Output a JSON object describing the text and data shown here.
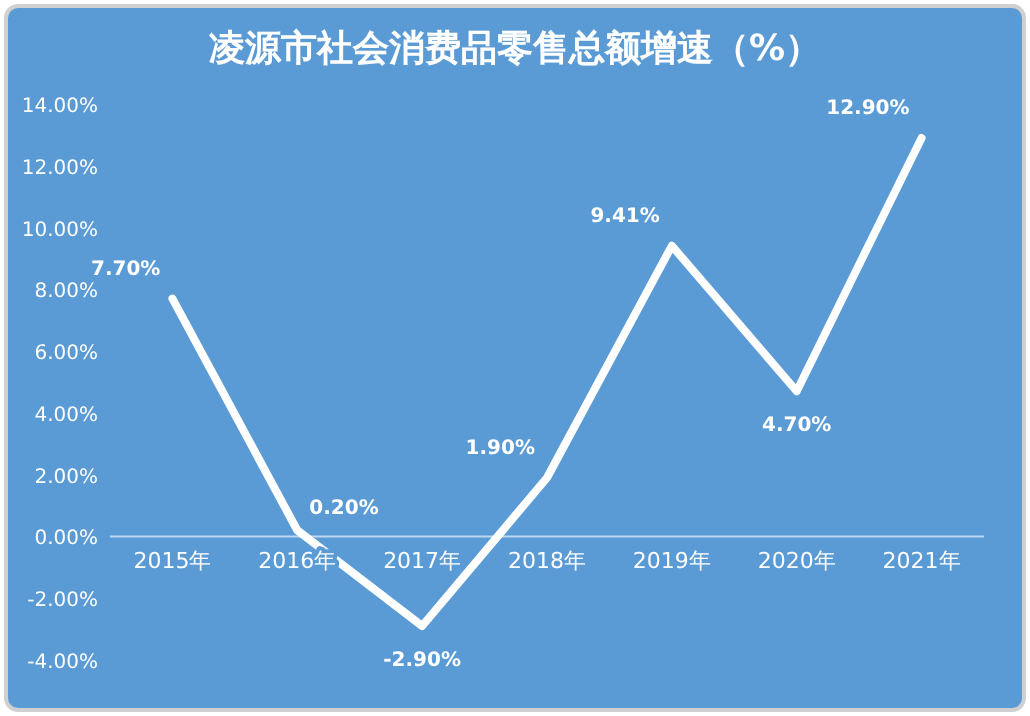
{
  "chart_data": {
    "type": "line",
    "title": "凌源市社会消费品零售总额增速（%）",
    "categories": [
      "2015年",
      "2016年",
      "2017年",
      "2018年",
      "2019年",
      "2020年",
      "2021年"
    ],
    "series": [
      {
        "color": "#ffffff",
        "values": [
          7.7,
          0.2,
          -2.9,
          1.9,
          9.41,
          4.7,
          12.9
        ],
        "value_labels": [
          "7.70%",
          "0.20%",
          "-2.90%",
          "1.90%",
          "9.41%",
          "4.70%",
          "12.90%"
        ]
      }
    ],
    "ylim": [
      -4,
      14
    ],
    "yticks": [
      {
        "value": -4,
        "label": "-4.00%"
      },
      {
        "value": -2,
        "label": "-2.00%"
      },
      {
        "value": 0,
        "label": "0.00%"
      },
      {
        "value": 2,
        "label": "2.00%"
      },
      {
        "value": 4,
        "label": "4.00%"
      },
      {
        "value": 6,
        "label": "6.00%"
      },
      {
        "value": 8,
        "label": "8.00%"
      },
      {
        "value": 10,
        "label": "10.00%"
      },
      {
        "value": 12,
        "label": "12.00%"
      },
      {
        "value": 14,
        "label": "14.00%"
      }
    ],
    "grid": false,
    "marker": "none",
    "line_style": "solid"
  }
}
